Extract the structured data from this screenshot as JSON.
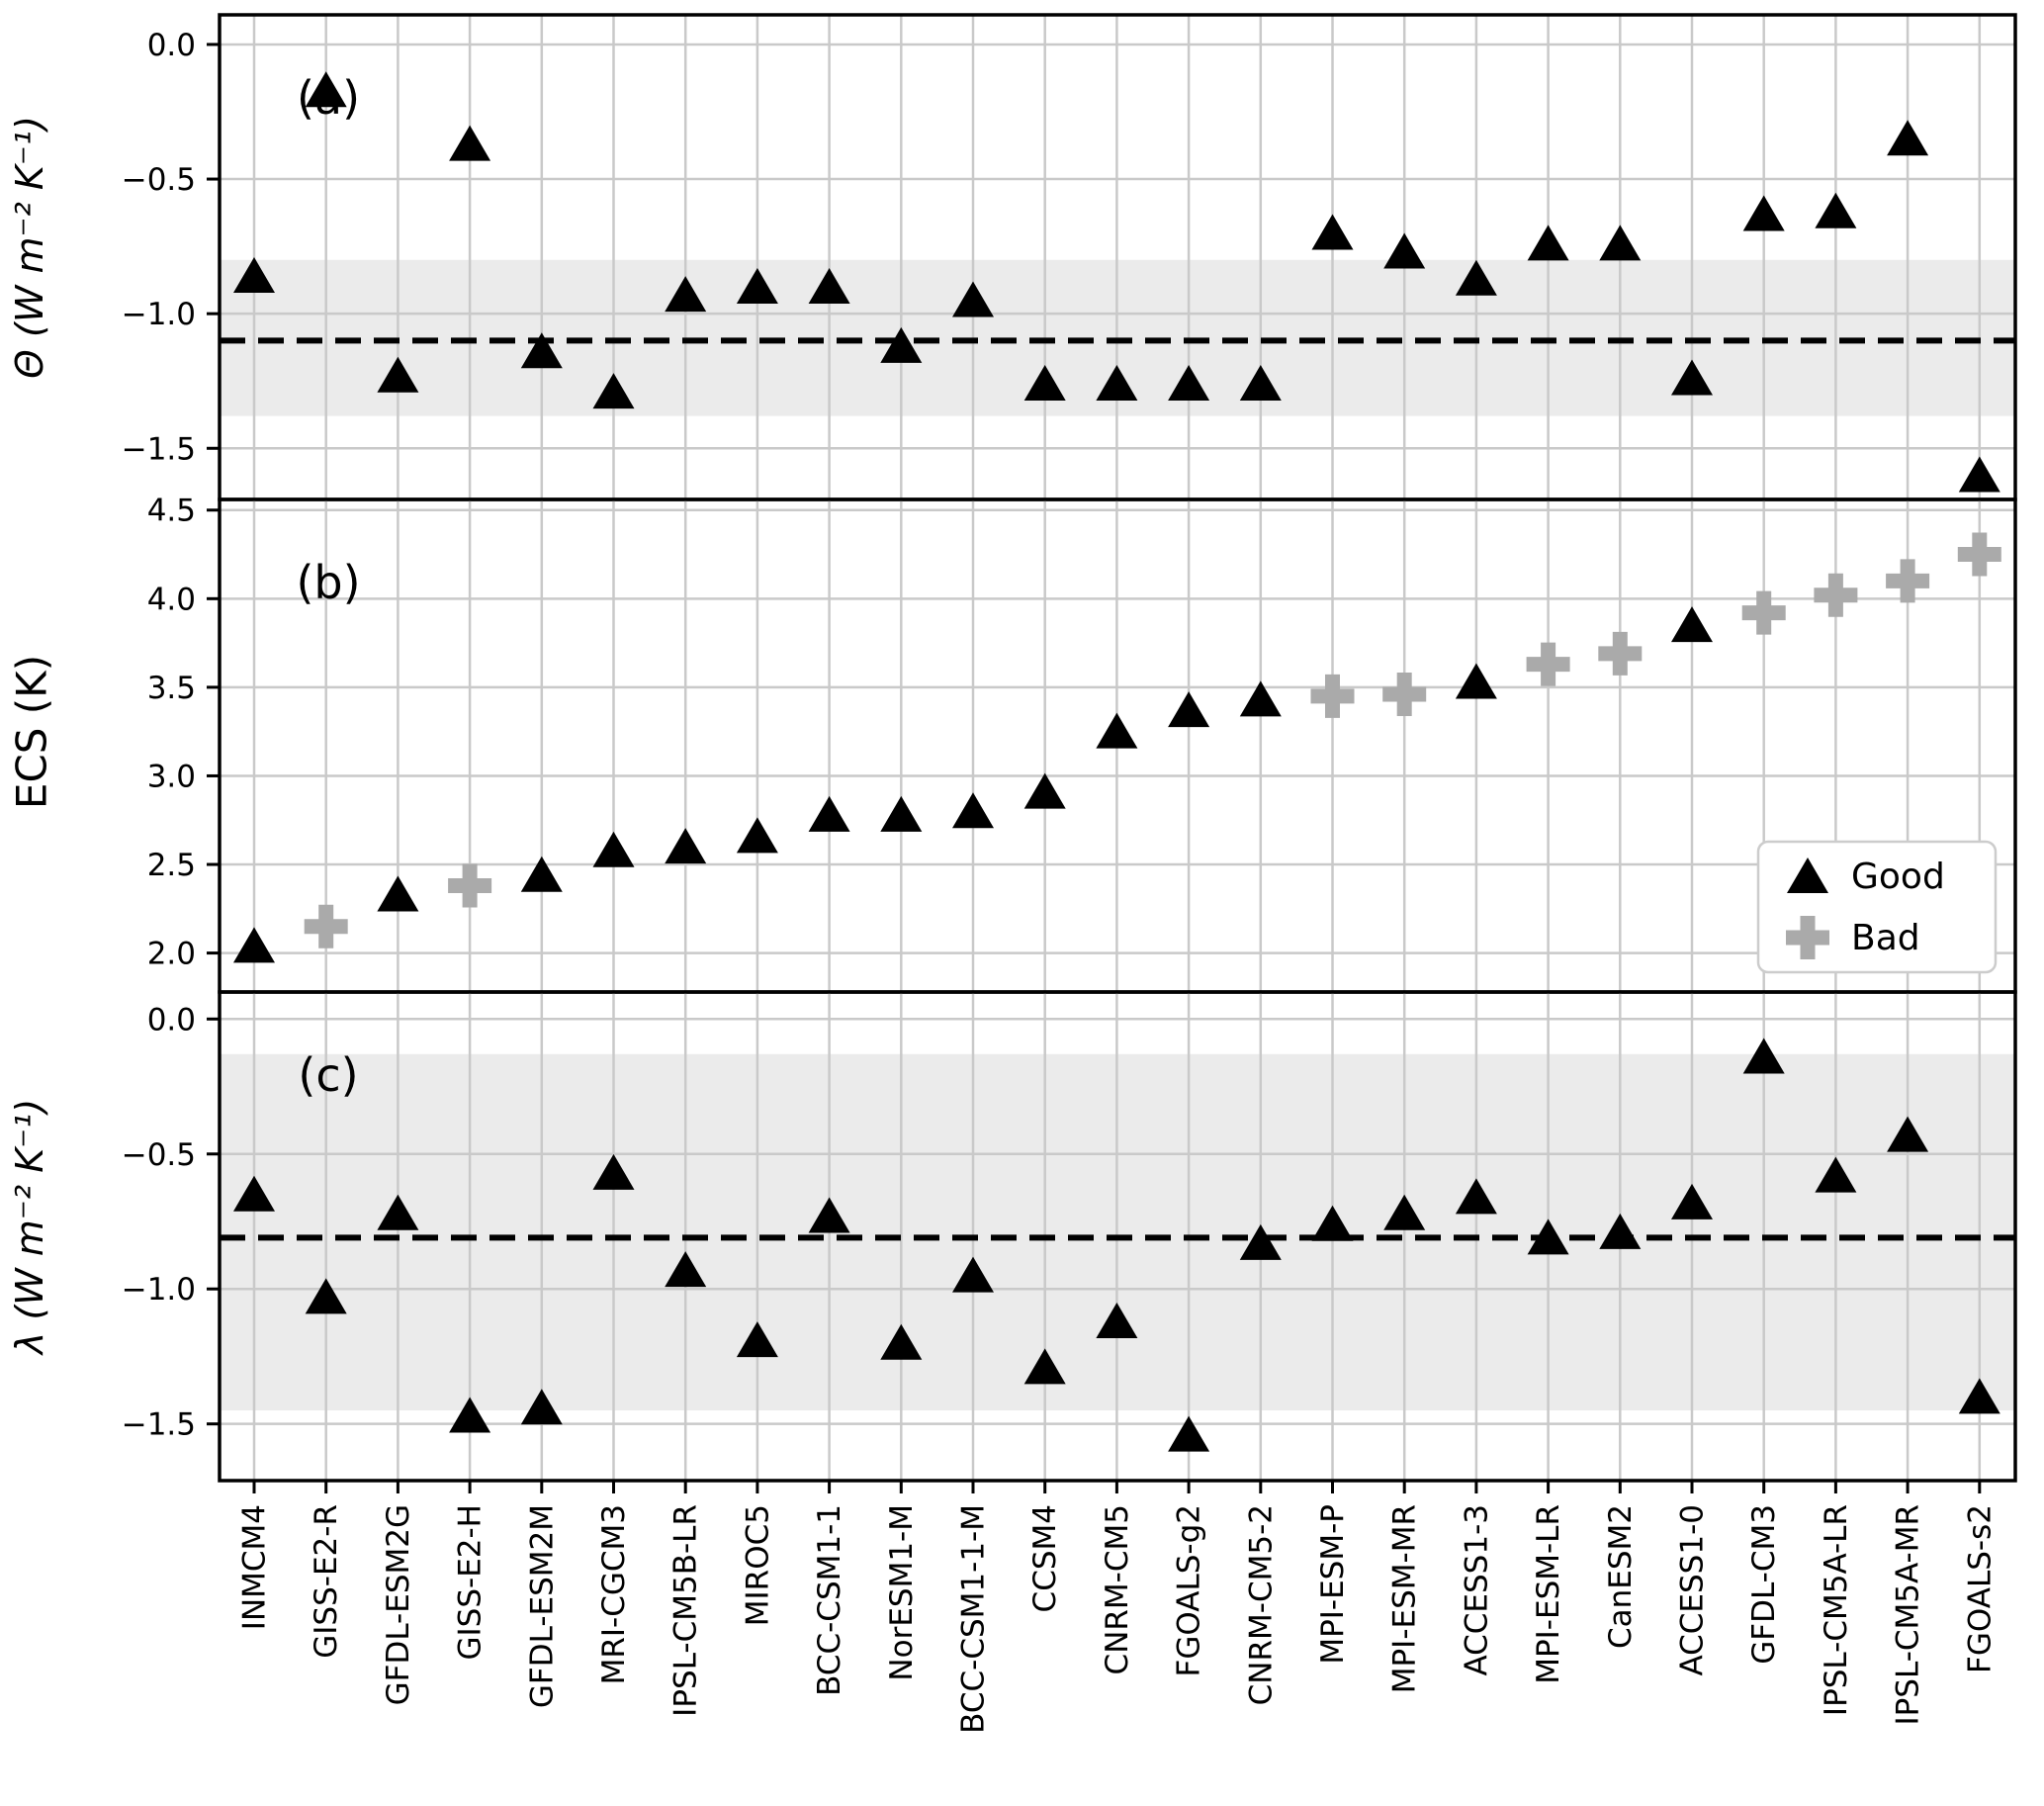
{
  "chart_data": {
    "type": "scatter",
    "title": "",
    "categories": [
      "INMCM4",
      "GISS-E2-R",
      "GFDL-ESM2G",
      "GISS-E2-H",
      "GFDL-ESM2M",
      "MRI-CGCM3",
      "IPSL-CM5B-LR",
      "MIROC5",
      "BCC-CSM1-1",
      "NorESM1-M",
      "BCC-CSM1-1-M",
      "CCSM4",
      "CNRM-CM5",
      "FGOALS-g2",
      "CNRM-CM5-2",
      "MPI-ESM-P",
      "MPI-ESM-MR",
      "ACCESS1-3",
      "MPI-ESM-LR",
      "CanESM2",
      "ACCESS1-0",
      "GFDL-CM3",
      "IPSL-CM5A-LR",
      "IPSL-CM5A-MR",
      "FGOALS-s2"
    ],
    "classification": [
      "good",
      "bad",
      "good",
      "bad",
      "good",
      "good",
      "good",
      "good",
      "good",
      "good",
      "good",
      "good",
      "good",
      "good",
      "good",
      "bad",
      "bad",
      "good",
      "bad",
      "bad",
      "good",
      "bad",
      "bad",
      "bad",
      "bad"
    ],
    "colors": {
      "good": "#000000",
      "bad": "#aaaaaa",
      "band": "#ebebeb",
      "grid": "#c9c9c9",
      "axis": "#000000",
      "legend_border": "#cccccc"
    },
    "legend": {
      "position": "lower right of panel b",
      "entries": [
        {
          "label": "Good",
          "marker": "triangle-icon",
          "color": "#000000"
        },
        {
          "label": "Bad",
          "marker": "plus-icon",
          "color": "#aaaaaa"
        }
      ]
    },
    "panels": [
      {
        "id": "a",
        "tag": "(a)",
        "ylabel": "Θ (W m⁻² K⁻¹)",
        "ylim": [
          0.11,
          -1.69
        ],
        "yticks": [
          {
            "label": "0.0",
            "value": 0.0
          },
          {
            "label": "−0.5",
            "value": -0.5
          },
          {
            "label": "−1.0",
            "value": -1.0
          },
          {
            "label": "−1.5",
            "value": -1.5
          }
        ],
        "band": [
          -0.8,
          -1.38
        ],
        "dashed_mean": -1.1,
        "markers": "uniform",
        "values": [
          -0.86,
          -0.17,
          -1.23,
          -0.37,
          -1.14,
          -1.29,
          -0.93,
          -0.9,
          -0.9,
          -1.12,
          -0.95,
          -1.26,
          -1.26,
          -1.26,
          -1.26,
          -0.7,
          -0.77,
          -0.87,
          -0.74,
          -0.74,
          -1.24,
          -0.63,
          -0.62,
          -0.35,
          -1.6
        ]
      },
      {
        "id": "b",
        "tag": "(b)",
        "ylabel": "ECS (K)",
        "ylim": [
          4.56,
          1.78
        ],
        "yticks": [
          {
            "label": "4.5",
            "value": 4.5
          },
          {
            "label": "4.0",
            "value": 4.0
          },
          {
            "label": "3.5",
            "value": 3.5
          },
          {
            "label": "3.0",
            "value": 3.0
          },
          {
            "label": "2.5",
            "value": 2.5
          },
          {
            "label": "2.0",
            "value": 2.0
          }
        ],
        "band": null,
        "dashed_mean": null,
        "markers": "by_classification",
        "values": [
          2.04,
          2.15,
          2.33,
          2.38,
          2.44,
          2.58,
          2.6,
          2.66,
          2.78,
          2.78,
          2.8,
          2.91,
          3.25,
          3.37,
          3.43,
          3.45,
          3.46,
          3.53,
          3.63,
          3.69,
          3.85,
          3.92,
          4.02,
          4.1,
          4.25
        ]
      },
      {
        "id": "c",
        "tag": "(c)",
        "ylabel": "λ (W m⁻² K⁻¹)",
        "ylim": [
          0.1,
          -1.71
        ],
        "yticks": [
          {
            "label": "0.0",
            "value": 0.0
          },
          {
            "label": "−0.5",
            "value": -0.5
          },
          {
            "label": "−1.0",
            "value": -1.0
          },
          {
            "label": "−1.5",
            "value": -1.5
          }
        ],
        "band": [
          -0.13,
          -1.45
        ],
        "dashed_mean": -0.81,
        "markers": "uniform",
        "values": [
          -0.65,
          -1.03,
          -0.72,
          -1.47,
          -1.44,
          -0.57,
          -0.93,
          -1.19,
          -0.73,
          -1.2,
          -0.95,
          -1.29,
          -1.12,
          -1.54,
          -0.83,
          -0.76,
          -0.72,
          -0.66,
          -0.81,
          -0.79,
          -0.68,
          -0.14,
          -0.58,
          -0.43,
          -1.4
        ]
      }
    ]
  }
}
